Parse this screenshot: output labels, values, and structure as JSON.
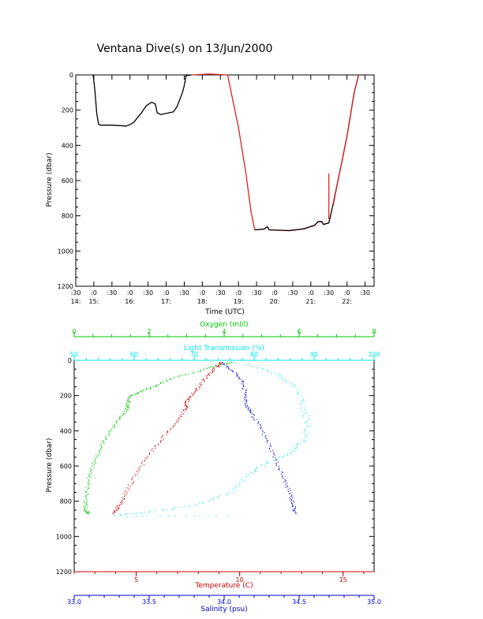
{
  "title": "Ventana Dive(s) on 13/Jun/2000",
  "colors": {
    "axis": "#000000",
    "oxygen": "#00c800",
    "transmission": "#00e8e8",
    "temperature": "#cc0000",
    "salinity": "#0000cc",
    "track_dark": "#000000",
    "track_red": "#dd2222"
  },
  "chart_data": [
    {
      "type": "line",
      "xlabel": "Time (UTC)",
      "ylabel": "Pressure (dbar)",
      "ylim": [
        1200,
        0
      ],
      "yticks": [
        "0",
        "200",
        "400",
        "600",
        "800",
        "1000",
        "1200"
      ],
      "xticks": [
        {
          "h": 14.5,
          "top": ":30",
          "bottom": "14:"
        },
        {
          "h": 15.0,
          "top": ":0",
          "bottom": "15:"
        },
        {
          "h": 15.5,
          "top": ":30",
          "bottom": ""
        },
        {
          "h": 16.0,
          "top": ":0",
          "bottom": "16:"
        },
        {
          "h": 16.5,
          "top": ":30",
          "bottom": ""
        },
        {
          "h": 17.0,
          "top": ":0",
          "bottom": "17:"
        },
        {
          "h": 17.5,
          "top": ":30",
          "bottom": ""
        },
        {
          "h": 18.0,
          "top": ":0",
          "bottom": "18:"
        },
        {
          "h": 18.5,
          "top": ":30",
          "bottom": ""
        },
        {
          "h": 19.0,
          "top": ":0",
          "bottom": "19:"
        },
        {
          "h": 19.5,
          "top": ":30",
          "bottom": ""
        },
        {
          "h": 20.0,
          "top": ":0",
          "bottom": "20:"
        },
        {
          "h": 20.5,
          "top": ":30",
          "bottom": ""
        },
        {
          "h": 21.0,
          "top": ":0",
          "bottom": "21:"
        },
        {
          "h": 21.5,
          "top": ":30",
          "bottom": ""
        },
        {
          "h": 22.0,
          "top": ":0",
          "bottom": "22:"
        },
        {
          "h": 22.5,
          "top": ":30",
          "bottom": ""
        }
      ],
      "series": [
        {
          "color_key": "track_dark",
          "points": [
            [
              14.98,
              0
            ],
            [
              15.03,
              90
            ],
            [
              15.08,
              220
            ],
            [
              15.13,
              280
            ],
            [
              15.18,
              285
            ],
            [
              15.5,
              285
            ],
            [
              15.9,
              290
            ],
            [
              16.0,
              282
            ],
            [
              16.1,
              270
            ],
            [
              16.3,
              220
            ],
            [
              16.45,
              175
            ],
            [
              16.6,
              155
            ],
            [
              16.7,
              165
            ],
            [
              16.75,
              215
            ],
            [
              16.85,
              225
            ],
            [
              17.2,
              210
            ],
            [
              17.3,
              180
            ],
            [
              17.45,
              100
            ],
            [
              17.5,
              60
            ],
            [
              17.55,
              5
            ],
            [
              17.7,
              0
            ]
          ]
        },
        {
          "color_key": "track_red",
          "points": [
            [
              17.7,
              0
            ],
            [
              18.2,
              -5
            ],
            [
              18.7,
              0
            ],
            [
              19.0,
              300
            ],
            [
              19.2,
              550
            ],
            [
              19.35,
              780
            ],
            [
              19.45,
              880
            ],
            [
              19.7,
              875
            ],
            [
              19.8,
              862
            ],
            [
              19.85,
              880
            ],
            [
              20.4,
              885
            ],
            [
              20.8,
              875
            ],
            [
              21.1,
              855
            ],
            [
              21.2,
              833
            ],
            [
              21.3,
              832
            ],
            [
              21.35,
              850
            ],
            [
              21.5,
              840
            ]
          ]
        },
        {
          "color_key": "track_dark",
          "points": [
            [
              19.45,
              880
            ],
            [
              19.7,
              876
            ],
            [
              19.8,
              863
            ],
            [
              19.85,
              880
            ],
            [
              20.4,
              884
            ],
            [
              20.8,
              874
            ],
            [
              21.1,
              854
            ],
            [
              21.2,
              834
            ],
            [
              21.3,
              833
            ],
            [
              21.35,
              849
            ],
            [
              21.5,
              840
            ],
            [
              21.6,
              750
            ],
            [
              21.75,
              600
            ],
            [
              21.85,
              500
            ],
            [
              22.0,
              350
            ],
            [
              22.2,
              100
            ],
            [
              22.32,
              0
            ]
          ]
        },
        {
          "color_key": "track_red",
          "points": [
            [
              21.62,
              740
            ],
            [
              21.75,
              600
            ],
            [
              21.85,
              500
            ],
            [
              22.0,
              350
            ],
            [
              22.2,
              100
            ],
            [
              22.32,
              0
            ]
          ]
        },
        {
          "color_key": "track_red",
          "points": [
            [
              21.5,
              560
            ],
            [
              21.5,
              820
            ]
          ]
        }
      ]
    },
    {
      "type": "scatter",
      "ylabel": "Pressure (dbar)",
      "ylim": [
        1200,
        0
      ],
      "yticks": [
        "0",
        "200",
        "400",
        "600",
        "800",
        "1000",
        "1200"
      ],
      "axes": [
        {
          "key": "oxygen",
          "label": "Oxygen (ml/l)",
          "position": "top-outer",
          "range": [
            0,
            8
          ],
          "ticks": [
            "0",
            "2",
            "4",
            "6",
            "8"
          ]
        },
        {
          "key": "transmission",
          "label": "Light Transmission (%)",
          "position": "top-inner",
          "range": [
            50,
            100
          ],
          "ticks": [
            "50",
            "60",
            "70",
            "80",
            "90",
            "100"
          ]
        },
        {
          "key": "temperature",
          "label": "Temperature (C)",
          "position": "bottom-inner",
          "range": [
            2,
            16.5
          ],
          "ticks": [
            "5",
            "10",
            "15"
          ],
          "tick_values": [
            5,
            10,
            15
          ]
        },
        {
          "key": "salinity",
          "label": "Salinity (psu)",
          "position": "bottom-outer",
          "range": [
            33.0,
            35.0
          ],
          "ticks": [
            "33.0",
            "33.5",
            "34.0",
            "34.5",
            "35.0"
          ]
        }
      ],
      "profiles": {
        "oxygen": [
          [
            4.3,
            10
          ],
          [
            3.8,
            25
          ],
          [
            3.3,
            60
          ],
          [
            2.6,
            100
          ],
          [
            2.2,
            140
          ],
          [
            1.8,
            170
          ],
          [
            1.5,
            200
          ],
          [
            1.42,
            240
          ],
          [
            1.38,
            280
          ],
          [
            1.2,
            330
          ],
          [
            0.95,
            400
          ],
          [
            0.72,
            480
          ],
          [
            0.55,
            560
          ],
          [
            0.42,
            640
          ],
          [
            0.35,
            720
          ],
          [
            0.3,
            800
          ],
          [
            0.28,
            850
          ],
          [
            0.4,
            870
          ]
        ],
        "temperature": [
          [
            9.1,
            10
          ],
          [
            8.8,
            40
          ],
          [
            8.4,
            90
          ],
          [
            8.0,
            150
          ],
          [
            7.6,
            200
          ],
          [
            7.4,
            240
          ],
          [
            7.35,
            280
          ],
          [
            6.9,
            350
          ],
          [
            6.3,
            430
          ],
          [
            5.7,
            520
          ],
          [
            5.1,
            620
          ],
          [
            4.6,
            720
          ],
          [
            4.3,
            800
          ],
          [
            4.05,
            840
          ],
          [
            3.9,
            870
          ]
        ],
        "salinity": [
          [
            33.98,
            10
          ],
          [
            34.06,
            60
          ],
          [
            34.12,
            120
          ],
          [
            34.14,
            200
          ],
          [
            34.15,
            260
          ],
          [
            34.18,
            300
          ],
          [
            34.24,
            380
          ],
          [
            34.3,
            480
          ],
          [
            34.35,
            580
          ],
          [
            34.4,
            680
          ],
          [
            34.44,
            760
          ],
          [
            34.46,
            820
          ],
          [
            34.47,
            870
          ]
        ],
        "transmission": [
          [
            79,
            20
          ],
          [
            84,
            80
          ],
          [
            87,
            150
          ],
          [
            88,
            250
          ],
          [
            89,
            350
          ],
          [
            88.5,
            450
          ],
          [
            86,
            520
          ],
          [
            82,
            580
          ],
          [
            79,
            650
          ],
          [
            76,
            750
          ],
          [
            70,
            820
          ],
          [
            62,
            860
          ],
          [
            57,
            880
          ],
          [
            77,
            880
          ]
        ]
      }
    }
  ]
}
